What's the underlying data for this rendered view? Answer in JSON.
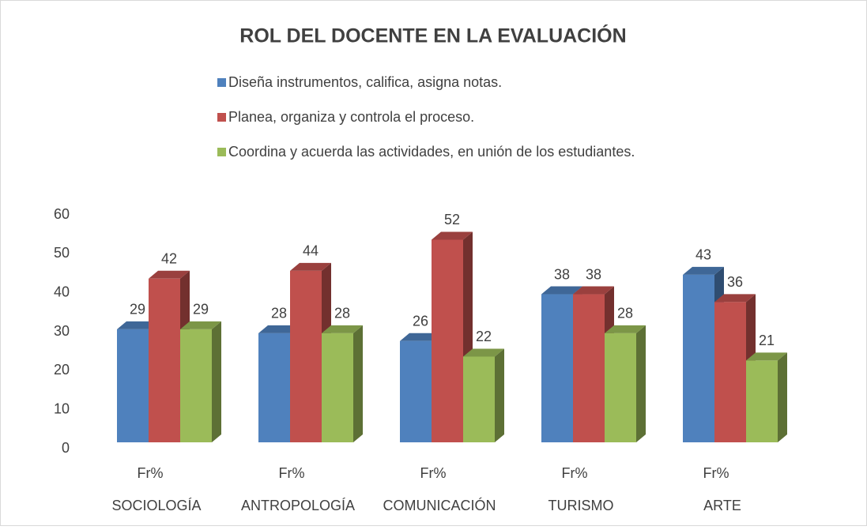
{
  "chart_data": {
    "type": "bar3d",
    "title": "ROL DEL DOCENTE EN LA EVALUACIÓN",
    "categories": [
      "SOCIOLOGÍA",
      "ANTROPOLOGÍA",
      "COMUNICACIÓN",
      "TURISMO",
      "ARTE"
    ],
    "category_sublabels": [
      "Fr%",
      "Fr%",
      "Fr%",
      "Fr%",
      "Fr%"
    ],
    "series": [
      {
        "name": "Diseña instrumentos, califica, asigna notas.",
        "color": "#4f81bd",
        "values": [
          29,
          28,
          26,
          38,
          43
        ]
      },
      {
        "name": "Planea, organiza y controla el proceso.",
        "color": "#c0504d",
        "values": [
          42,
          44,
          52,
          38,
          36
        ]
      },
      {
        "name": "Coordina y acuerda las actividades, en unión de los estudiantes.",
        "color": "#9bbb59",
        "values": [
          29,
          28,
          22,
          28,
          21
        ]
      }
    ],
    "ylim": [
      0,
      60
    ],
    "yticks": [
      0,
      10,
      20,
      30,
      40,
      50,
      60
    ],
    "grid": false,
    "legend": "top"
  }
}
